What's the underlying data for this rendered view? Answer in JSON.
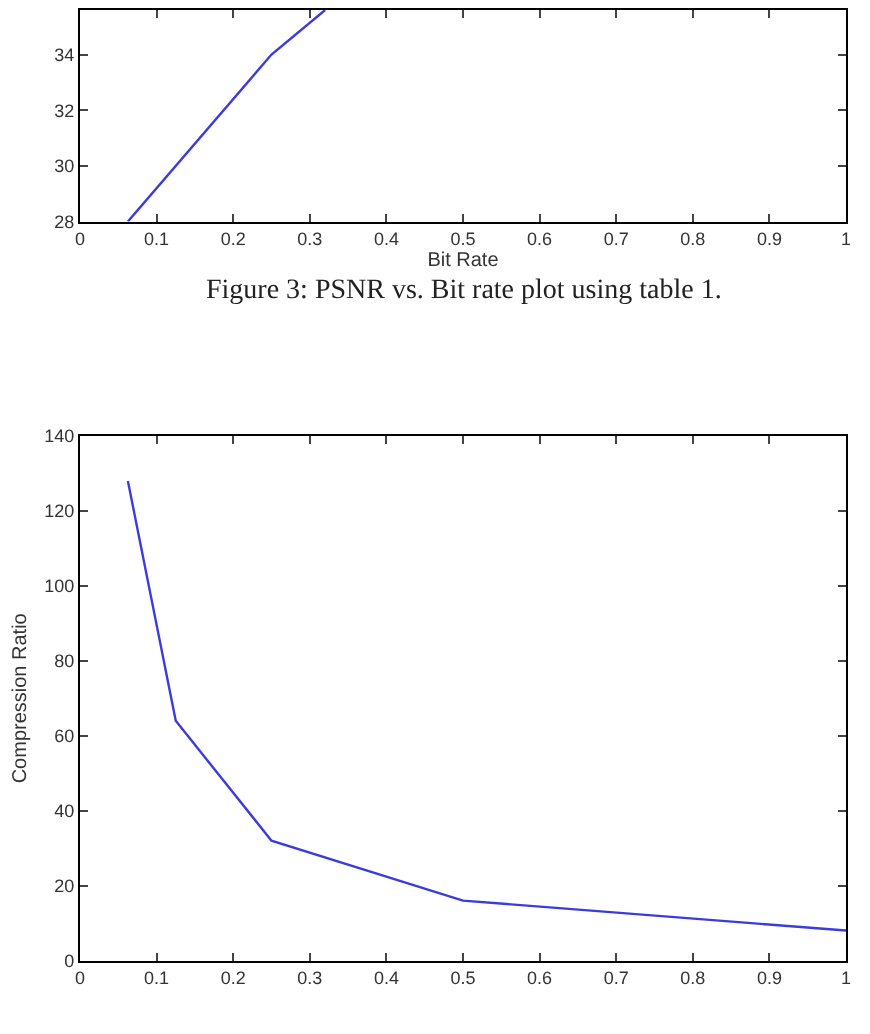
{
  "chart_data": [
    {
      "type": "line",
      "xlabel": "Bit Rate",
      "x": [
        0.0625,
        0.25,
        0.32
      ],
      "values": [
        28,
        34,
        35.6
      ],
      "color": "#3c3cdc",
      "xlim": [
        0,
        1
      ],
      "xticks": [
        0,
        0.1,
        0.2,
        0.3,
        0.4,
        0.5,
        0.6,
        0.7,
        0.8,
        0.9,
        1
      ],
      "ylim": [
        28,
        35.6
      ],
      "yticks": [
        28,
        30,
        32,
        34
      ],
      "annotations": [
        "Figure 3: PSNR vs. Bit rate plot using table 1."
      ]
    },
    {
      "type": "line",
      "ylabel": "Compression Ratio",
      "x": [
        0.0625,
        0.125,
        0.25,
        0.5,
        1
      ],
      "values": [
        128,
        64,
        32,
        16,
        8
      ],
      "color": "#3c3cdc",
      "xlim": [
        0,
        1
      ],
      "xticks": [
        0,
        0.1,
        0.2,
        0.3,
        0.4,
        0.5,
        0.6,
        0.7,
        0.8,
        0.9,
        1
      ],
      "ylim": [
        0,
        140
      ],
      "yticks": [
        0,
        20,
        40,
        60,
        80,
        100,
        120,
        140
      ]
    }
  ]
}
